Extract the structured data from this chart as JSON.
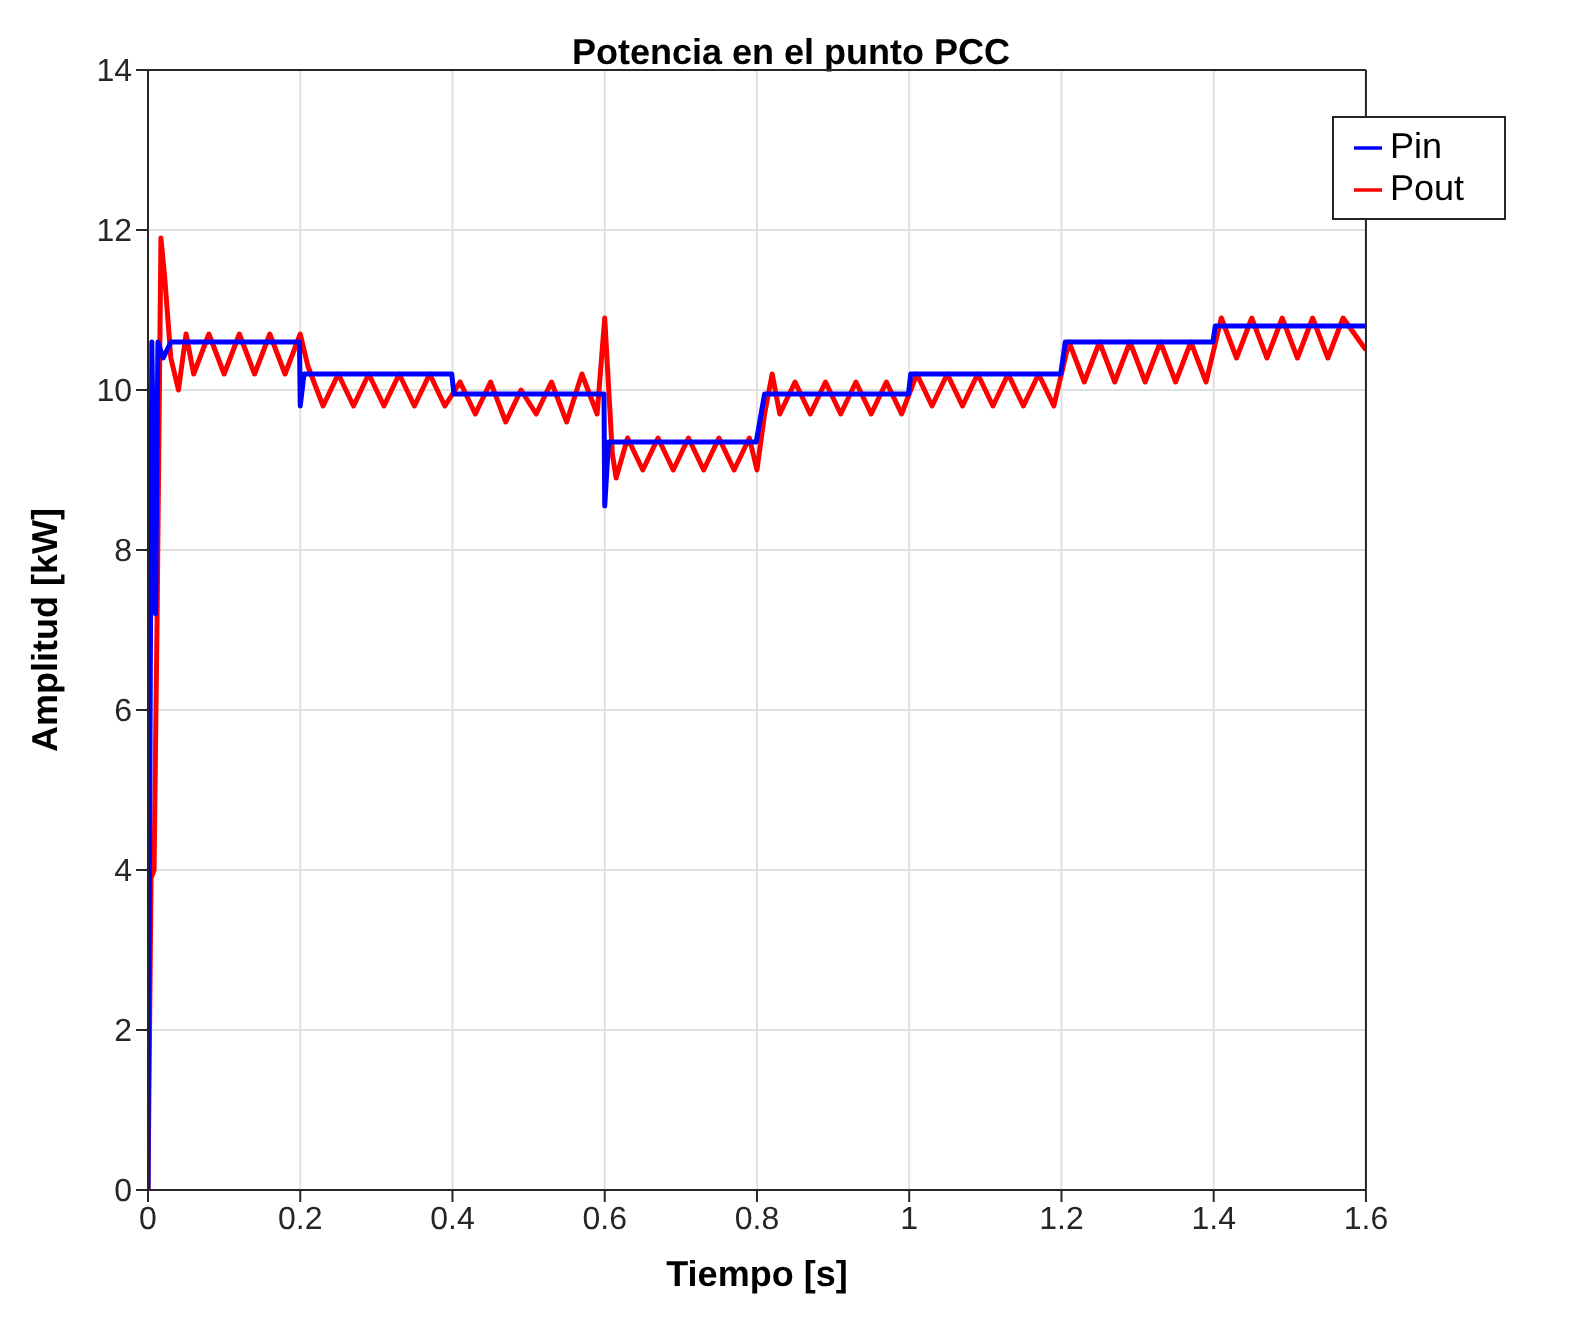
{
  "chart_data": {
    "type": "line",
    "title": "Potencia en el punto PCC",
    "xlabel": "Tiempo [s]",
    "ylabel": "Amplitud [kW]",
    "xlim": [
      0,
      1.6
    ],
    "xticks": [
      0,
      0.2,
      0.4,
      0.6,
      0.8,
      1,
      1.2,
      1.4,
      1.6
    ],
    "ylim": [
      0,
      14
    ],
    "yticks": [
      0,
      2,
      4,
      6,
      8,
      10,
      12,
      14
    ],
    "grid": true,
    "legend": "top right",
    "marker": "none",
    "line_style": "solid",
    "series": [
      {
        "name": "Pout",
        "color": "#ff0000",
        "x": [
          0,
          0.004,
          0.008,
          0.012,
          0.017,
          0.022,
          0.03,
          0.04,
          0.05,
          0.06,
          0.08,
          0.1,
          0.12,
          0.14,
          0.16,
          0.18,
          0.2,
          0.21,
          0.23,
          0.25,
          0.27,
          0.29,
          0.31,
          0.33,
          0.35,
          0.37,
          0.39,
          0.41,
          0.43,
          0.45,
          0.47,
          0.49,
          0.51,
          0.53,
          0.55,
          0.57,
          0.59,
          0.6,
          0.61,
          0.615,
          0.63,
          0.65,
          0.67,
          0.69,
          0.71,
          0.73,
          0.75,
          0.77,
          0.79,
          0.8,
          0.81,
          0.82,
          0.83,
          0.85,
          0.87,
          0.89,
          0.91,
          0.93,
          0.95,
          0.97,
          0.99,
          1.01,
          1.03,
          1.05,
          1.07,
          1.09,
          1.11,
          1.13,
          1.15,
          1.17,
          1.19,
          1.21,
          1.23,
          1.25,
          1.27,
          1.29,
          1.31,
          1.33,
          1.35,
          1.37,
          1.39,
          1.41,
          1.43,
          1.45,
          1.47,
          1.49,
          1.51,
          1.53,
          1.55,
          1.57,
          1.6
        ],
        "values": [
          0,
          3.9,
          4.0,
          7.2,
          11.9,
          11.4,
          10.4,
          10.0,
          10.7,
          10.2,
          10.7,
          10.2,
          10.7,
          10.2,
          10.7,
          10.2,
          10.7,
          10.3,
          9.8,
          10.2,
          9.8,
          10.2,
          9.8,
          10.2,
          9.8,
          10.2,
          9.8,
          10.1,
          9.7,
          10.1,
          9.6,
          10.0,
          9.7,
          10.1,
          9.6,
          10.2,
          9.7,
          10.9,
          9.2,
          8.9,
          9.4,
          9.0,
          9.4,
          9.0,
          9.4,
          9.0,
          9.4,
          9.0,
          9.4,
          9.0,
          9.7,
          10.2,
          9.7,
          10.1,
          9.7,
          10.1,
          9.7,
          10.1,
          9.7,
          10.1,
          9.7,
          10.2,
          9.8,
          10.2,
          9.8,
          10.2,
          9.8,
          10.2,
          9.8,
          10.2,
          9.8,
          10.6,
          10.1,
          10.6,
          10.1,
          10.6,
          10.1,
          10.6,
          10.1,
          10.6,
          10.1,
          10.9,
          10.4,
          10.9,
          10.4,
          10.9,
          10.4,
          10.9,
          10.4,
          10.9,
          10.5
        ]
      },
      {
        "name": "Pin",
        "color": "#0000ff",
        "x": [
          0,
          0.005,
          0.01,
          0.013,
          0.02,
          0.03,
          0.199,
          0.2,
          0.205,
          0.399,
          0.402,
          0.599,
          0.6,
          0.605,
          0.799,
          0.81,
          0.999,
          1.002,
          1.199,
          1.205,
          1.399,
          1.402,
          1.6
        ],
        "values": [
          0,
          10.6,
          7.2,
          10.6,
          10.4,
          10.6,
          10.6,
          9.8,
          10.2,
          10.2,
          9.95,
          9.95,
          8.55,
          9.35,
          9.35,
          9.95,
          9.95,
          10.2,
          10.2,
          10.6,
          10.6,
          10.8,
          10.8
        ]
      }
    ]
  }
}
